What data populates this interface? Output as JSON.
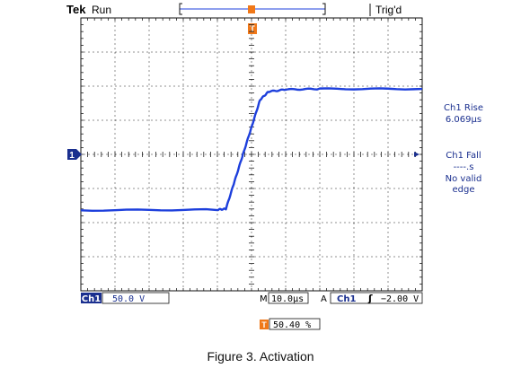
{
  "header": {
    "brand": "Tek",
    "run_state": "Run",
    "trigger_status": "Trig'd",
    "trigger_marker": "T"
  },
  "readouts": {
    "rise_label": "Ch1 Rise",
    "rise_value": "6.069µs",
    "fall_label": "Ch1 Fall",
    "fall_value": "----.s",
    "fall_note_1": "No valid",
    "fall_note_2": "edge"
  },
  "channel_marker": "1",
  "footer": {
    "channel": "Ch1",
    "volts_per_div": "50.0 V",
    "m_label": "M",
    "time_per_div": "10.0µs",
    "a_label": "A",
    "trigger_source": "Ch1",
    "trigger_slope_symbol": "ʃ",
    "trigger_level": "−2.00 V",
    "trigger_position_marker": "T",
    "trigger_position": "50.40 %"
  },
  "caption": "Figure 3. Activation",
  "colors": {
    "trace": "#1d3fdc",
    "marker_blue": "#1a2f8f",
    "marker_orange": "#f07818",
    "grid": "#222222"
  },
  "chart_data": {
    "type": "line",
    "grid": {
      "x_divisions": 10,
      "y_divisions": 8,
      "on": true
    },
    "x_axis": {
      "units_per_div": 10,
      "unit": "µs",
      "range": [
        -50,
        50
      ]
    },
    "y_axis": {
      "units_per_div": 50,
      "unit": "V",
      "range": [
        -200,
        200
      ]
    },
    "series": [
      {
        "x": [
          -50,
          -10,
          -7.5,
          -5,
          -2.5,
          0,
          2.5,
          5,
          10,
          20,
          50
        ],
        "y": [
          -82,
          -81,
          -80,
          -40,
          0,
          40,
          80,
          92,
          95,
          96,
          96
        ]
      }
    ]
  }
}
